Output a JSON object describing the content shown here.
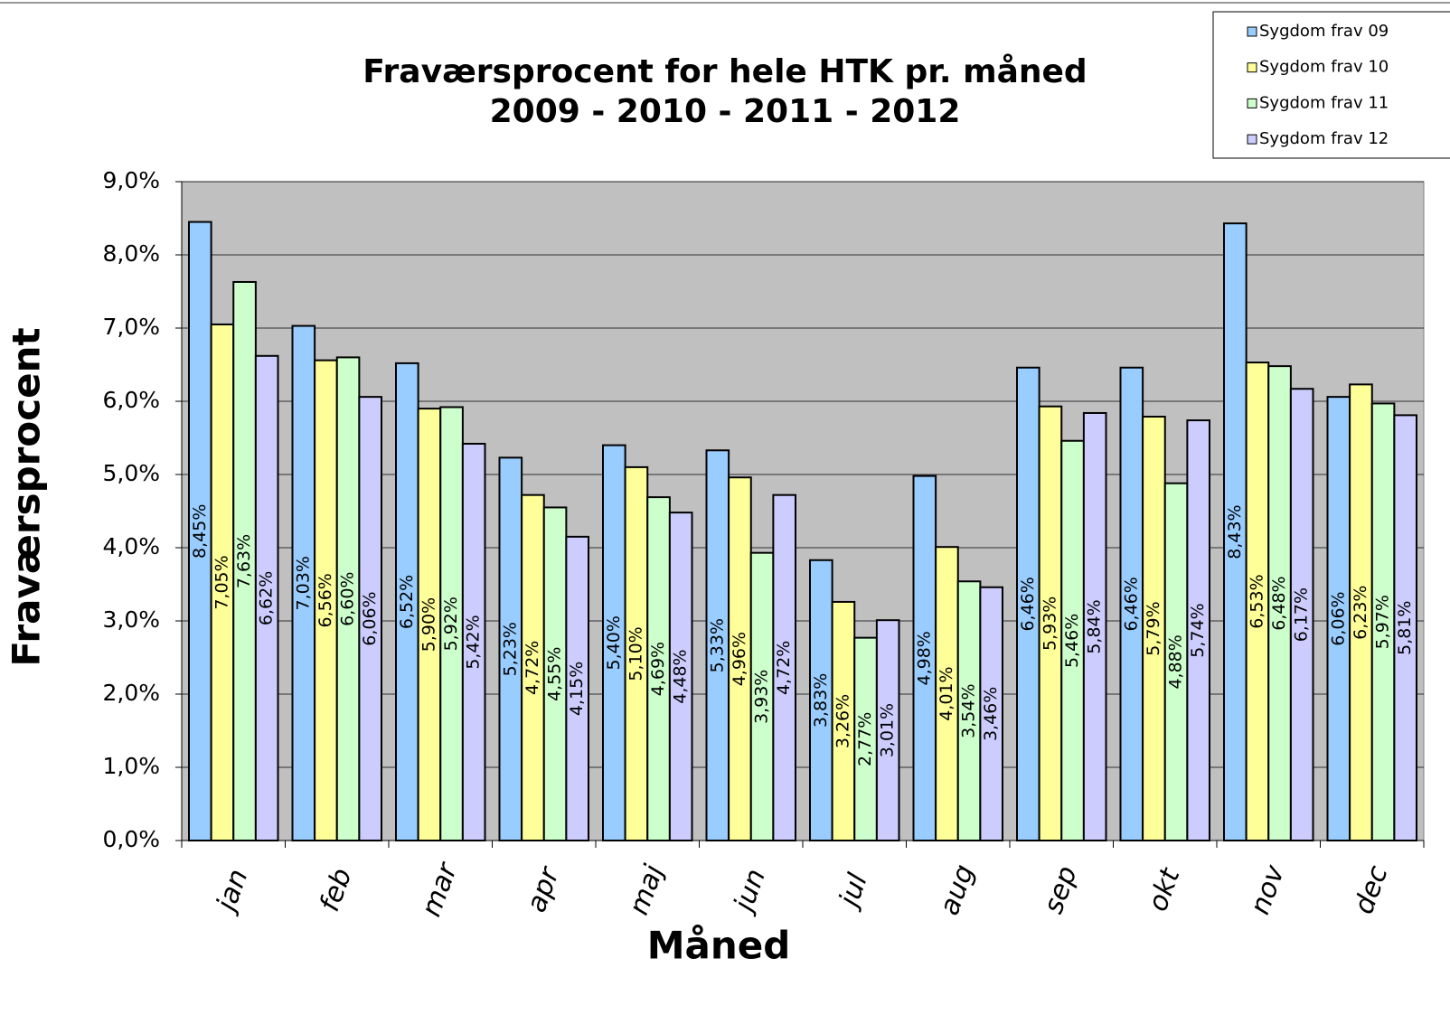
{
  "chart_data": {
    "type": "bar",
    "title": [
      "Fraværsprocent for hele HTK pr. måned",
      "2009 - 2010 - 2011 - 2012"
    ],
    "x_label": "Måned",
    "y_label": "Fraværsprocent",
    "categories": [
      "jan",
      "feb",
      "mar",
      "apr",
      "maj",
      "jun",
      "jul",
      "aug",
      "sep",
      "okt",
      "nov",
      "dec"
    ],
    "series": [
      {
        "name": "Sygdom frav 09",
        "color": "#99ccff",
        "values": [
          8.45,
          7.03,
          6.52,
          5.23,
          5.4,
          5.33,
          3.83,
          4.98,
          6.46,
          6.46,
          8.43,
          6.06
        ],
        "value_labels": [
          "8,45%",
          "7,03%",
          "6,52%",
          "5,23%",
          "5,40%",
          "5,33%",
          "3,83%",
          "4,98%",
          "6,46%",
          "6,46%",
          "8,43%",
          "6,06%"
        ]
      },
      {
        "name": "Sygdom frav 10",
        "color": "#ffff99",
        "values": [
          7.05,
          6.56,
          5.9,
          4.72,
          5.1,
          4.96,
          3.26,
          4.01,
          5.93,
          5.79,
          6.53,
          6.23
        ],
        "value_labels": [
          "7,05%",
          "6,56%",
          "5,90%",
          "4,72%",
          "5,10%",
          "4,96%",
          "3,26%",
          "4,01%",
          "5,93%",
          "5,79%",
          "6,53%",
          "6,23%"
        ]
      },
      {
        "name": "Sygdom frav 11",
        "color": "#ccffcc",
        "values": [
          7.63,
          6.6,
          5.92,
          4.55,
          4.69,
          3.93,
          2.77,
          3.54,
          5.46,
          4.88,
          6.48,
          5.97
        ],
        "value_labels": [
          "7,63%",
          "6,60%",
          "5,92%",
          "4,55%",
          "4,69%",
          "3,93%",
          "2,77%",
          "3,54%",
          "5,46%",
          "4,88%",
          "6,48%",
          "5,97%"
        ]
      },
      {
        "name": "Sygdom frav 12",
        "color": "#ccccff",
        "values": [
          6.62,
          6.06,
          5.42,
          4.15,
          4.48,
          4.72,
          3.01,
          3.46,
          5.84,
          5.74,
          6.17,
          5.81
        ],
        "value_labels": [
          "6,62%",
          "6,06%",
          "5,42%",
          "4,15%",
          "4,48%",
          "4,72%",
          "3,01%",
          "3,46%",
          "5,84%",
          "5,74%",
          "6,17%",
          "5,81%"
        ]
      }
    ],
    "ylim": [
      0,
      9
    ],
    "yticks": [
      {
        "value": 0,
        "label": "0,0%"
      },
      {
        "value": 1,
        "label": "1,0%"
      },
      {
        "value": 2,
        "label": "2,0%"
      },
      {
        "value": 3,
        "label": "3,0%"
      },
      {
        "value": 4,
        "label": "4,0%"
      },
      {
        "value": 5,
        "label": "5,0%"
      },
      {
        "value": 6,
        "label": "6,0%"
      },
      {
        "value": 7,
        "label": "7,0%"
      },
      {
        "value": 8,
        "label": "8,0%"
      },
      {
        "value": 9,
        "label": "9,0%"
      }
    ],
    "grid": true,
    "plot_background": "#c0c0c0",
    "legend_position": "top-right"
  }
}
